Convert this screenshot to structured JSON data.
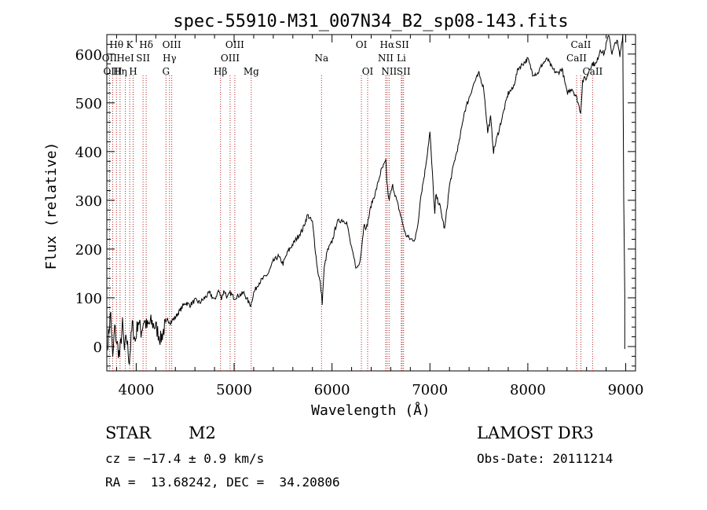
{
  "chart_data": {
    "type": "line",
    "title": "spec-55910-M31_007N34_B2_sp08-143.fits",
    "xlabel": "Wavelength (Å)",
    "ylabel": "Flux (relative)",
    "xlim": [
      3700,
      9100
    ],
    "ylim": [
      -50,
      640
    ],
    "xticks": [
      4000,
      5000,
      6000,
      7000,
      8000,
      9000
    ],
    "yticks": [
      0,
      100,
      200,
      300,
      400,
      500,
      600
    ],
    "grid": false,
    "series": [
      {
        "name": "flux",
        "color": "#000000",
        "x": [
          3710,
          3740,
          3760,
          3780,
          3800,
          3830,
          3860,
          3880,
          3900,
          3930,
          3960,
          3990,
          4020,
          4050,
          4080,
          4110,
          4150,
          4200,
          4250,
          4290,
          4320,
          4350,
          4400,
          4450,
          4500,
          4550,
          4600,
          4650,
          4700,
          4750,
          4800,
          4840,
          4870,
          4900,
          4930,
          4960,
          5000,
          5050,
          5100,
          5150,
          5170,
          5200,
          5250,
          5300,
          5350,
          5400,
          5450,
          5500,
          5550,
          5600,
          5650,
          5700,
          5750,
          5800,
          5850,
          5880,
          5900,
          5920,
          5950,
          6000,
          6050,
          6100,
          6150,
          6200,
          6250,
          6280,
          6300,
          6330,
          6350,
          6400,
          6450,
          6500,
          6550,
          6560,
          6580,
          6620,
          6660,
          6700,
          6750,
          6800,
          6850,
          6880,
          6900,
          6950,
          7000,
          7050,
          7060,
          7100,
          7130,
          7150,
          7200,
          7250,
          7300,
          7350,
          7400,
          7450,
          7500,
          7550,
          7590,
          7620,
          7650,
          7680,
          7700,
          7750,
          7800,
          7850,
          7900,
          7950,
          8000,
          8050,
          8100,
          8150,
          8200,
          8250,
          8300,
          8350,
          8400,
          8450,
          8500,
          8540,
          8560,
          8580,
          8600,
          8630,
          8660,
          8700,
          8740,
          8780,
          8800,
          8830,
          8860,
          8890,
          8910,
          8940,
          8970,
          8980,
          8990
        ],
        "values": [
          10,
          70,
          -30,
          40,
          10,
          -20,
          45,
          -10,
          20,
          -30,
          45,
          10,
          55,
          30,
          55,
          40,
          50,
          40,
          15,
          40,
          55,
          50,
          60,
          75,
          90,
          85,
          95,
          90,
          100,
          110,
          95,
          115,
          100,
          115,
          100,
          110,
          100,
          105,
          110,
          90,
          85,
          110,
          130,
          140,
          150,
          175,
          185,
          170,
          195,
          210,
          225,
          240,
          270,
          255,
          160,
          130,
          90,
          160,
          195,
          215,
          255,
          260,
          255,
          200,
          160,
          170,
          200,
          255,
          240,
          290,
          320,
          360,
          380,
          340,
          300,
          330,
          300,
          270,
          230,
          220,
          220,
          255,
          300,
          360,
          440,
          270,
          310,
          290,
          260,
          240,
          330,
          380,
          420,
          480,
          510,
          540,
          560,
          530,
          440,
          470,
          400,
          425,
          440,
          480,
          520,
          530,
          570,
          580,
          590,
          560,
          560,
          580,
          590,
          570,
          560,
          570,
          520,
          530,
          510,
          480,
          545,
          550,
          550,
          570,
          580,
          580,
          610,
          600,
          620,
          640,
          600,
          620,
          630,
          595,
          640,
          300,
          110
        ]
      }
    ],
    "lines": [
      {
        "name": "Hθ",
        "x": 3798,
        "row": 1,
        "color": "#b22222"
      },
      {
        "name": "OII",
        "x": 3727,
        "row": 2,
        "color": "#b22222"
      },
      {
        "name": "OIII",
        "x": 3760,
        "row": 3,
        "color": "#b22222"
      },
      {
        "name": "Hη",
        "x": 3835,
        "row": 3,
        "color": "#b22222"
      },
      {
        "name": "K",
        "x": 3934,
        "row": 1,
        "color": "#b22222"
      },
      {
        "name": "HeI",
        "x": 3889,
        "row": 2,
        "color": "#b22222"
      },
      {
        "name": "SII",
        "x": 4070,
        "row": 2,
        "color": "#b22222"
      },
      {
        "name": "H",
        "x": 3969,
        "row": 3,
        "color": "#b22222"
      },
      {
        "name": "Hδ",
        "x": 4102,
        "row": 1,
        "color": "#b22222"
      },
      {
        "name": "OIII",
        "x": 4363,
        "row": 1,
        "color": "#b22222"
      },
      {
        "name": "Hγ",
        "x": 4340,
        "row": 2,
        "color": "#b22222"
      },
      {
        "name": "G",
        "x": 4304,
        "row": 3,
        "color": "#b22222"
      },
      {
        "name": "Hβ",
        "x": 4861,
        "row": 3,
        "color": "#b22222"
      },
      {
        "name": "OIII",
        "x": 5007,
        "row": 1,
        "color": "#b22222"
      },
      {
        "name": "OIII",
        "x": 4959,
        "row": 2,
        "color": "#b22222"
      },
      {
        "name": "Mg",
        "x": 5175,
        "row": 3,
        "color": "#b22222"
      },
      {
        "name": "Na",
        "x": 5893,
        "row": 2,
        "color": "#b22222"
      },
      {
        "name": "OI",
        "x": 6300,
        "row": 1,
        "color": "#b22222"
      },
      {
        "name": "OI",
        "x": 6364,
        "row": 3,
        "color": "#b22222"
      },
      {
        "name": "Hα",
        "x": 6563,
        "row": 1,
        "color": "#b22222"
      },
      {
        "name": "NII",
        "x": 6548,
        "row": 2,
        "color": "#b22222"
      },
      {
        "name": "NII",
        "x": 6583,
        "row": 3,
        "color": "#b22222"
      },
      {
        "name": "SII",
        "x": 6716,
        "row": 1,
        "color": "#b22222"
      },
      {
        "name": "Li",
        "x": 6708,
        "row": 2,
        "color": "#b22222"
      },
      {
        "name": "SII",
        "x": 6731,
        "row": 3,
        "color": "#b22222"
      },
      {
        "name": "CaII",
        "x": 8542,
        "row": 1,
        "color": "#b22222"
      },
      {
        "name": "CaII",
        "x": 8498,
        "row": 2,
        "color": "#b22222"
      },
      {
        "name": "CaII",
        "x": 8662,
        "row": 3,
        "color": "#b22222"
      }
    ]
  },
  "info": {
    "class": "STAR",
    "subclass": "M2",
    "survey": "LAMOST DR3",
    "cz": "cz = −17.4 ± 0.9 km/s",
    "obs_date": "Obs-Date: 20111214",
    "coords": "RA =  13.68242, DEC =  34.20806"
  }
}
